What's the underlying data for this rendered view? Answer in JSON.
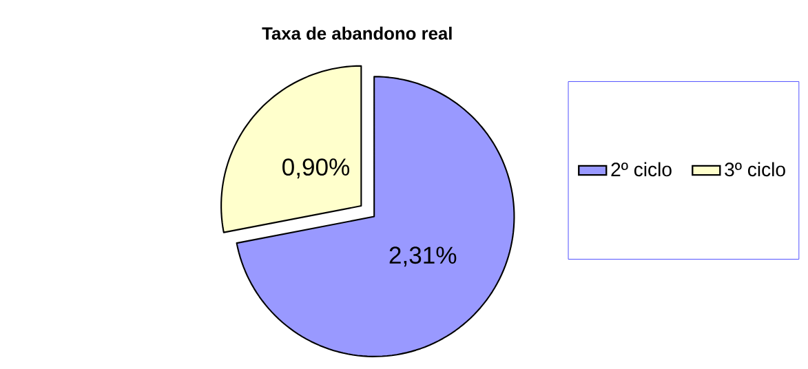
{
  "chart_data": {
    "type": "pie",
    "title": "Taxa de abandono real",
    "categories": [
      "2º ciclo",
      "3º ciclo"
    ],
    "values": [
      2.31,
      0.9
    ],
    "value_labels": [
      "2,31%",
      "0,90%"
    ],
    "colors": [
      "#9999ff",
      "#ffffcc"
    ],
    "legend": "right"
  }
}
